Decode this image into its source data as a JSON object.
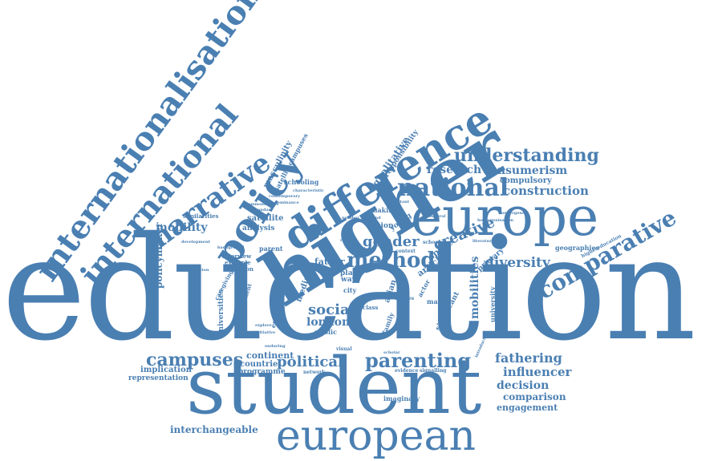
{
  "colors": {
    "word": "#4a7fb2",
    "background": "#ffffff"
  },
  "words": {
    "education": "education",
    "student": "student",
    "european": "european",
    "higher": "higher",
    "europe": "europe",
    "difference": "difference",
    "policy": "policy",
    "internationalisation": "internationalisation",
    "international": "international",
    "narrative": "narrative",
    "national": "national",
    "understanding": "understanding",
    "comparative": "comparative",
    "method": "method",
    "parenting": "parenting",
    "campuses": "campuses",
    "research": "research",
    "consumerism": "consumerism",
    "construction": "construction",
    "compulsory": "compulsory",
    "gender": "gender",
    "creative": "creative",
    "diversity": "diversity",
    "fathering": "fathering",
    "influencer": "influencer",
    "decision": "decision",
    "comparison": "comparison",
    "engagement": "engagement",
    "interchangeable": "interchangeable",
    "political": "political",
    "social": "social",
    "london": "london",
    "mobility": "mobility",
    "policymaker": "policymaker",
    "satellite": "satellite",
    "analysis": "analysis",
    "masculinity": "masculinity",
    "satellitecampuses": "satellitecampuses",
    "qualitative": "qualitative",
    "responsibility": "responsibility",
    "schooling": "schooling",
    "father": "father",
    "mobilities": "mobilities",
    "implication": "implication",
    "representation": "representation",
    "continent": "continent",
    "countrie": "countrie",
    "programme": "programme",
    "imaginary": "imaginary",
    "geographies": "geographies",
    "highereducation": "highereducation",
    "similarities": "similarities",
    "interview": "interview",
    "example": "example",
    "relation": "relation",
    "parent": "parent",
    "article": "article",
    "space": "space",
    "primary": "primary",
    "university": "university",
    "media": "media",
    "place": "place",
    "way": "way",
    "nation": "nation",
    "young": "young",
    "making": "making",
    "significant": "significant",
    "universities": "universities",
    "economic": "economic",
    "public": "public",
    "family": "family",
    "asian": "asian",
    "class": "class",
    "document": "document",
    "caregiving": "caregiving",
    "evidence": "evidence",
    "signalling": "signalling",
    "network": "network",
    "scholar": "scholar",
    "introduction": "introduction",
    "temporal": "temporal",
    "homogenisation": "homogenisation",
    "convergence": "convergence",
    "contemporary": "contemporary",
    "dominance": "dominance",
    "commonalities": "commonalities",
    "secondary": "secondary",
    "characteristic": "characteristic",
    "development": "development",
    "assumption": "assumption",
    "background": "background",
    "context": "context",
    "school": "school",
    "studies": "studies",
    "respect": "respect",
    "literature": "literature",
    "visual": "visual",
    "explore": "explore",
    "initiative": "initiative",
    "enduring": "enduring",
    "actor": "actor",
    "many": "many",
    "city": "city",
    "child": "child",
    "england": "england",
    "number": "number",
    "important": "important"
  }
}
